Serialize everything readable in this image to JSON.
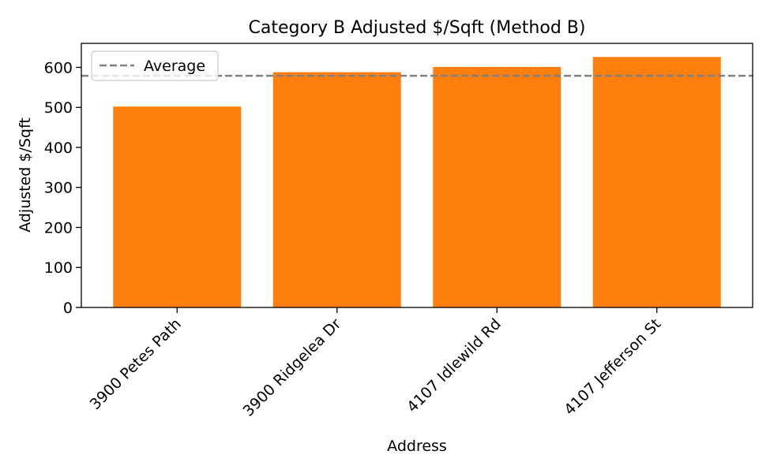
{
  "chart_data": {
    "type": "bar",
    "title": "Category B Adjusted $/Sqft (Method B)",
    "xlabel": "Address",
    "ylabel": "Adjusted $/Sqft",
    "categories": [
      "3900 Petes Path",
      "3900 Ridgelea Dr",
      "4107 Idlewild Rd",
      "4107 Jefferson St"
    ],
    "values": [
      502,
      588,
      601,
      626
    ],
    "ylim": [
      0,
      660
    ],
    "yticks": [
      0,
      100,
      200,
      300,
      400,
      500,
      600
    ],
    "average": 579,
    "legend": {
      "placement": "top-left",
      "entries": [
        {
          "label": "Average",
          "style": "dashed-line",
          "color": "#808080"
        }
      ]
    },
    "bar_color": "#ff7f0e",
    "grid": false
  }
}
